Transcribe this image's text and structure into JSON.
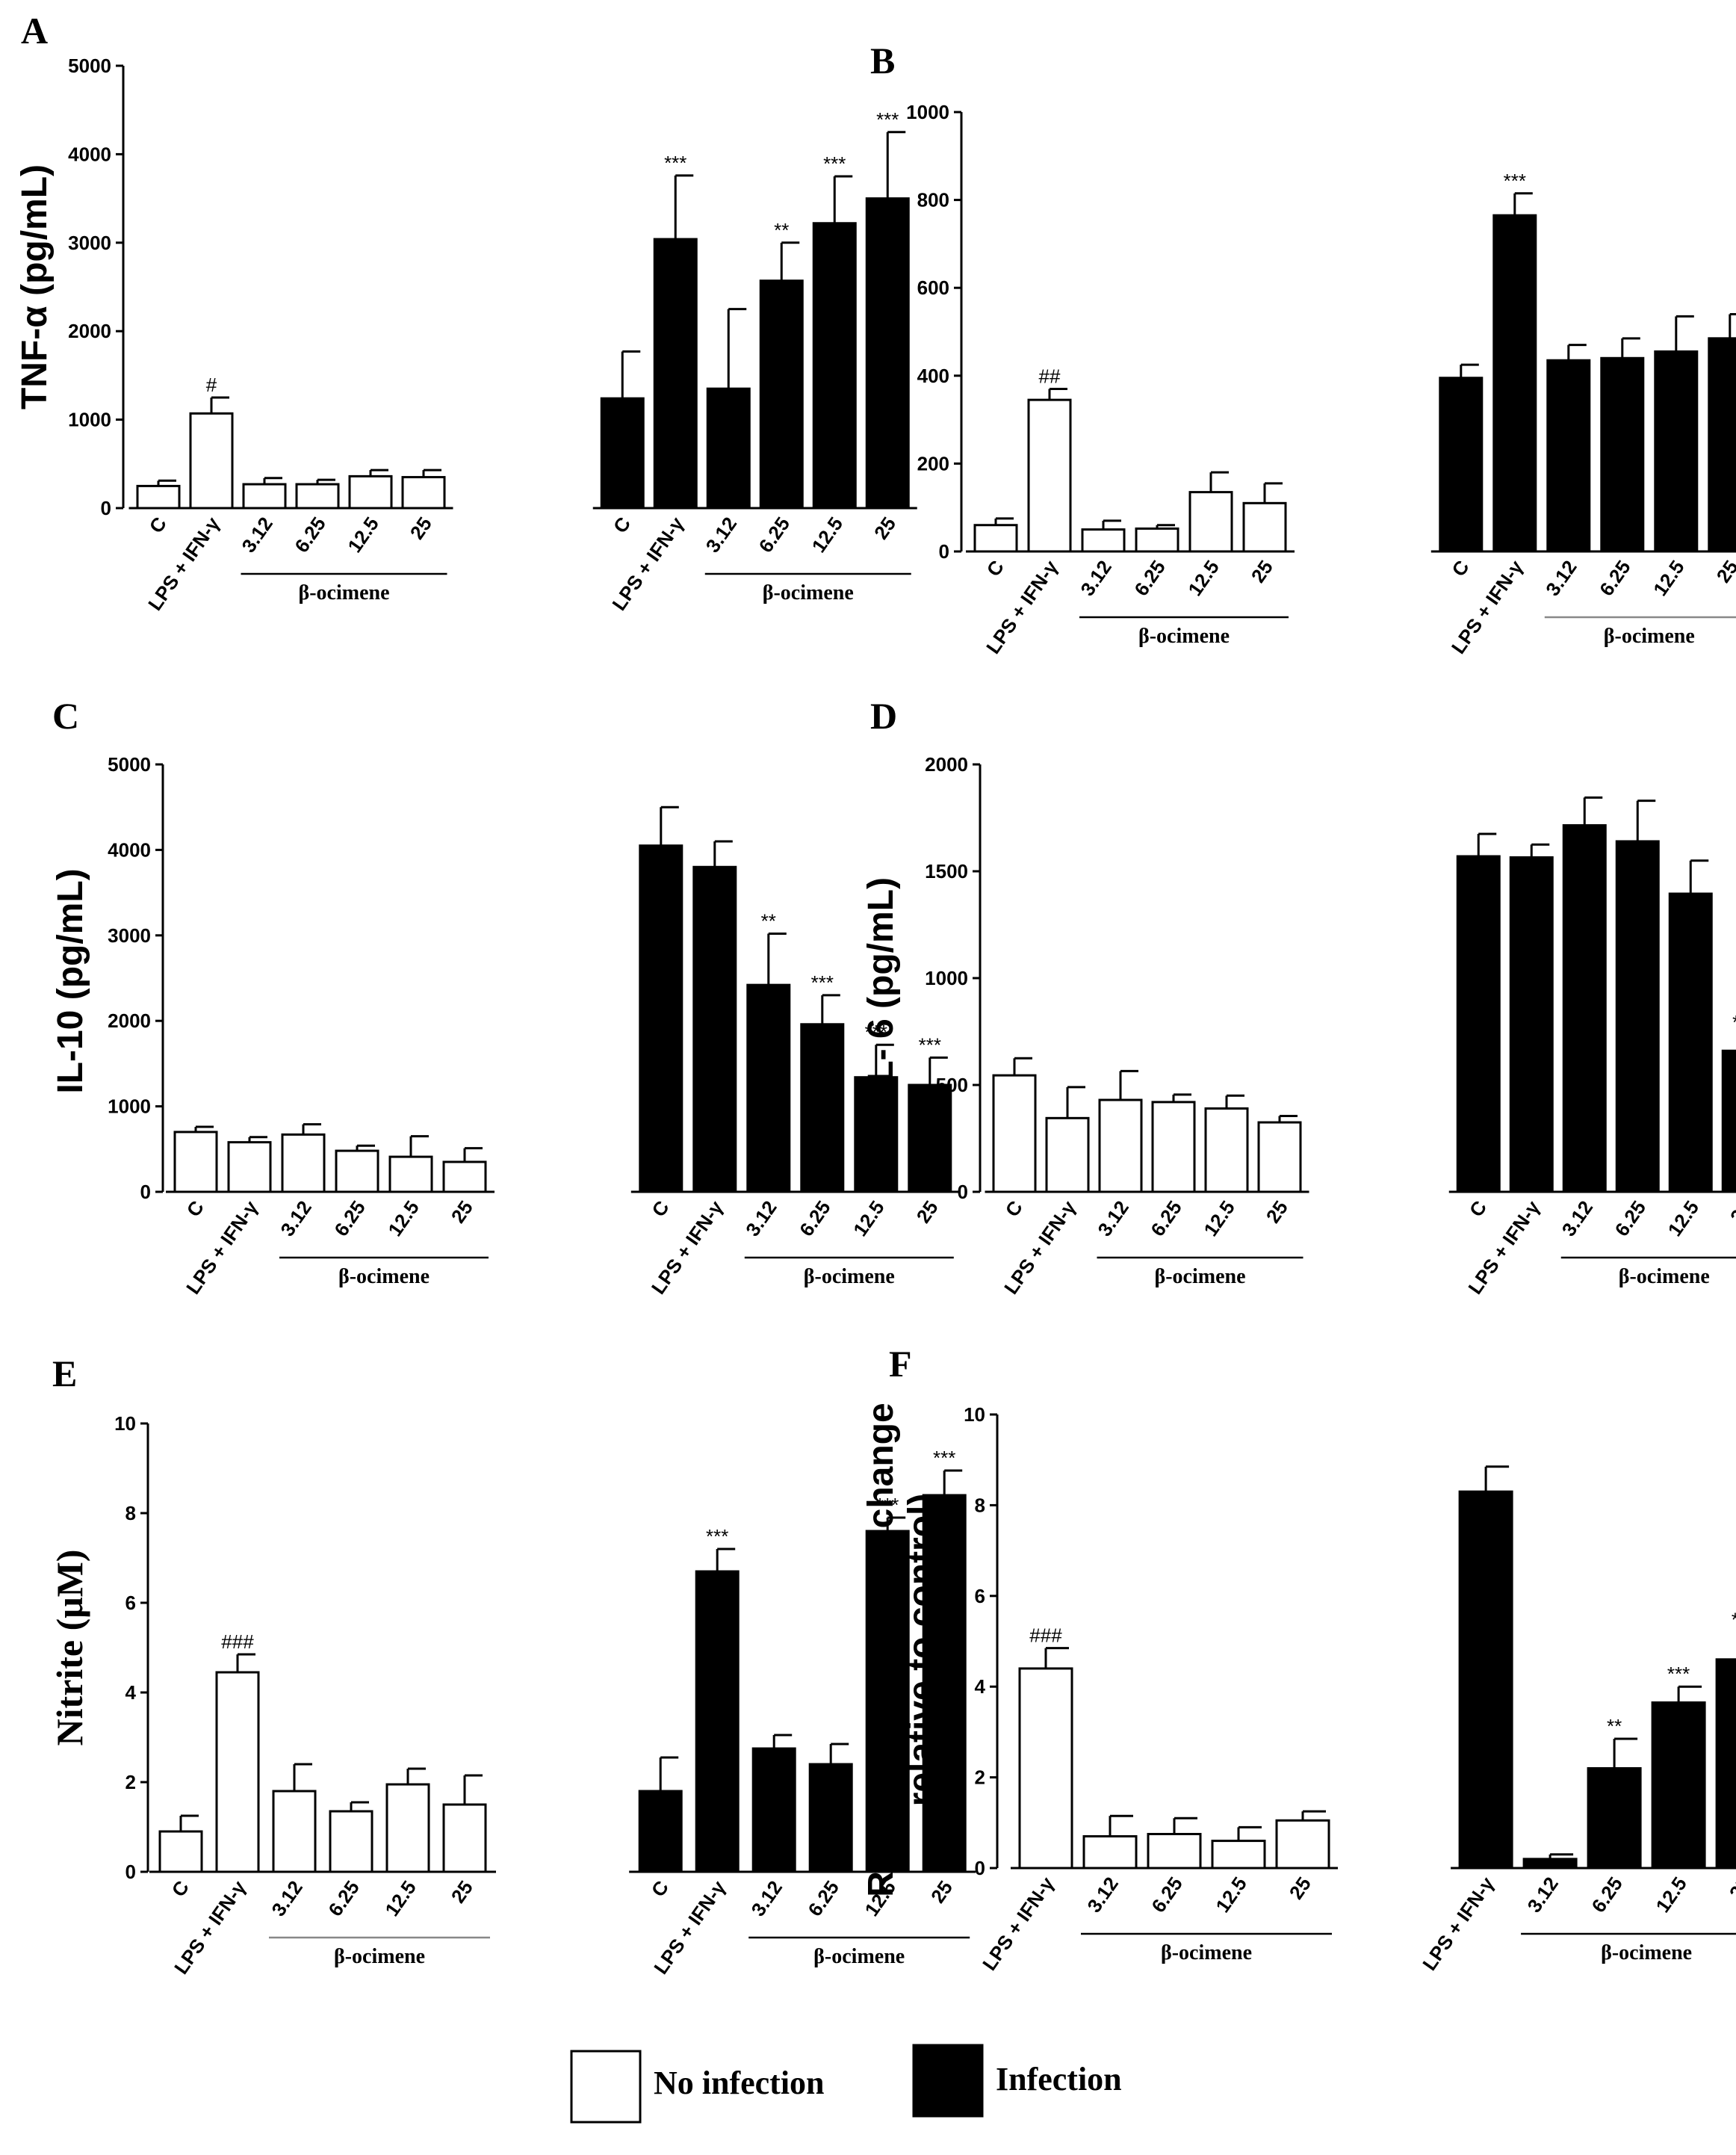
{
  "colors": {
    "no_infection": "#ffffff",
    "infection": "#000000",
    "axis": "#000000",
    "group_line_light": "#888888"
  },
  "legend": {
    "no_infection_label": "No infection",
    "infection_label": "Infection"
  },
  "chart_data": [
    {
      "panel": "A",
      "type": "bar",
      "ylabel": "TNF-α (pg/mL)",
      "ylim": [
        0,
        5000
      ],
      "yticks": [
        0,
        1000,
        2000,
        3000,
        4000,
        5000
      ],
      "groups": [
        {
          "series": "No infection",
          "categories": [
            "C",
            "LPS + IFN-γ",
            "3.12",
            "6.25",
            "12.5",
            "25"
          ],
          "values": [
            250,
            1070,
            270,
            270,
            360,
            350
          ],
          "errors": [
            60,
            180,
            70,
            50,
            70,
            80
          ],
          "sig": [
            "",
            "#",
            "",
            "",
            "",
            ""
          ],
          "bracket_label": "β-ocimene"
        },
        {
          "series": "Infection",
          "categories": [
            "C",
            "LPS + IFN-γ",
            "3.12",
            "6.25",
            "12.5",
            "25"
          ],
          "values": [
            1240,
            3040,
            1350,
            2570,
            3220,
            3500
          ],
          "errors": [
            530,
            720,
            900,
            430,
            530,
            750
          ],
          "sig": [
            "",
            "***",
            "",
            "**",
            "***",
            "***"
          ],
          "bracket_label": "β-ocimene"
        }
      ]
    },
    {
      "panel": "B",
      "type": "bar",
      "ylabel": "IL-12 (pg/mL)",
      "ylim": [
        0,
        1000
      ],
      "yticks": [
        0,
        200,
        400,
        600,
        800,
        1000
      ],
      "groups": [
        {
          "series": "No infection",
          "categories": [
            "C",
            "LPS + IFN-γ",
            "3.12",
            "6.25",
            "12.5",
            "25"
          ],
          "values": [
            60,
            345,
            50,
            52,
            135,
            110
          ],
          "errors": [
            15,
            25,
            20,
            8,
            45,
            45
          ],
          "sig": [
            "",
            "##",
            "",
            "",
            "",
            ""
          ],
          "bracket_label": "β-ocimene"
        },
        {
          "series": "Infection",
          "categories": [
            "C",
            "LPS + IFN-γ",
            "3.12",
            "6.25",
            "12.5",
            "25"
          ],
          "values": [
            395,
            765,
            435,
            440,
            455,
            485
          ],
          "errors": [
            30,
            50,
            35,
            45,
            80,
            55
          ],
          "sig": [
            "",
            "***",
            "",
            "",
            "",
            ""
          ],
          "bracket_label": "β-ocimene"
        }
      ]
    },
    {
      "panel": "C",
      "type": "bar",
      "ylabel": "IL-10 (pg/mL)",
      "ylim": [
        0,
        5000
      ],
      "yticks": [
        0,
        1000,
        2000,
        3000,
        4000,
        5000
      ],
      "groups": [
        {
          "series": "No infection",
          "categories": [
            "C",
            "LPS + IFN-γ",
            "3.12",
            "6.25",
            "12.5",
            "25"
          ],
          "values": [
            700,
            580,
            670,
            480,
            410,
            350
          ],
          "errors": [
            60,
            60,
            120,
            60,
            240,
            160
          ],
          "sig": [
            "",
            "",
            "",
            "",
            "",
            ""
          ],
          "bracket_label": "β-ocimene"
        },
        {
          "series": "Infection",
          "categories": [
            "C",
            "LPS + IFN-γ",
            "3.12",
            "6.25",
            "12.5",
            "25"
          ],
          "values": [
            4050,
            3800,
            2420,
            1960,
            1340,
            1250
          ],
          "errors": [
            450,
            300,
            600,
            340,
            380,
            320
          ],
          "sig": [
            "",
            "",
            "**",
            "***",
            "***",
            "***"
          ],
          "bracket_label": "β-ocimene"
        }
      ]
    },
    {
      "panel": "D",
      "type": "bar",
      "ylabel": "IL- 6 (pg/mL)",
      "ylim": [
        0,
        2000
      ],
      "yticks": [
        0,
        500,
        1000,
        1500,
        2000
      ],
      "groups": [
        {
          "series": "No infection",
          "categories": [
            "C",
            "LPS + IFN-γ",
            "3.12",
            "6.25",
            "12.5",
            "25"
          ],
          "values": [
            545,
            345,
            430,
            420,
            390,
            325
          ],
          "errors": [
            80,
            145,
            135,
            35,
            60,
            30
          ],
          "sig": [
            "",
            "",
            "",
            "",
            "",
            ""
          ],
          "bracket_label": "β-ocimene"
        },
        {
          "series": "Infection",
          "categories": [
            "C",
            "LPS + IFN-γ",
            "3.12",
            "6.25",
            "12.5",
            "25"
          ],
          "values": [
            1570,
            1565,
            1715,
            1640,
            1395,
            660
          ],
          "errors": [
            105,
            60,
            130,
            190,
            155,
            75
          ],
          "sig": [
            "",
            "",
            "",
            "",
            "",
            "***"
          ],
          "bracket_label": "β-ocimene"
        }
      ]
    },
    {
      "panel": "E",
      "type": "bar",
      "ylabel": "Nitrite (μM)",
      "ylim": [
        0,
        10
      ],
      "yticks": [
        0,
        2,
        4,
        6,
        8,
        10
      ],
      "groups": [
        {
          "series": "No infection",
          "categories": [
            "C",
            "LPS + IFN-γ",
            "3.12",
            "6.25",
            "12.5",
            "25"
          ],
          "values": [
            0.9,
            4.45,
            1.8,
            1.35,
            1.95,
            1.5
          ],
          "errors": [
            0.35,
            0.4,
            0.6,
            0.2,
            0.35,
            0.65
          ],
          "sig": [
            "",
            "###",
            "",
            "",
            "",
            ""
          ],
          "bracket_label": "β-ocimene"
        },
        {
          "series": "Infection",
          "categories": [
            "C",
            "LPS + IFN-γ",
            "3.12",
            "6.25",
            "12.5",
            "25"
          ],
          "values": [
            1.8,
            6.7,
            2.75,
            2.4,
            7.6,
            8.4
          ],
          "errors": [
            0.75,
            0.5,
            0.3,
            0.45,
            0.3,
            0.55
          ],
          "sig": [
            "",
            "***",
            "",
            "",
            "***",
            "***"
          ],
          "bracket_label": "β-ocimene"
        }
      ]
    },
    {
      "panel": "F",
      "type": "bar",
      "ylabel_lines": [
        "ROS generation (fold change",
        "relative to control)"
      ],
      "ylim": [
        0,
        10
      ],
      "yticks": [
        0,
        2,
        4,
        6,
        8,
        10
      ],
      "groups": [
        {
          "series": "No infection",
          "categories": [
            "LPS + IFN-γ",
            "3.12",
            "6.25",
            "12.5",
            "25"
          ],
          "values": [
            4.4,
            0.7,
            0.75,
            0.6,
            1.05
          ],
          "errors": [
            0.45,
            0.45,
            0.35,
            0.3,
            0.2
          ],
          "sig": [
            "###",
            "",
            "",
            "",
            ""
          ],
          "bracket_label": "β-ocimene"
        },
        {
          "series": "Infection",
          "categories": [
            "LPS + IFN-γ",
            "3.12",
            "6.25",
            "12.5",
            "25"
          ],
          "values": [
            8.3,
            0.2,
            2.2,
            3.65,
            4.6
          ],
          "errors": [
            0.55,
            0.1,
            0.65,
            0.35,
            0.6
          ],
          "sig": [
            "",
            "",
            "**",
            "***",
            "***"
          ],
          "bracket_label": "β-ocimene"
        }
      ]
    }
  ]
}
